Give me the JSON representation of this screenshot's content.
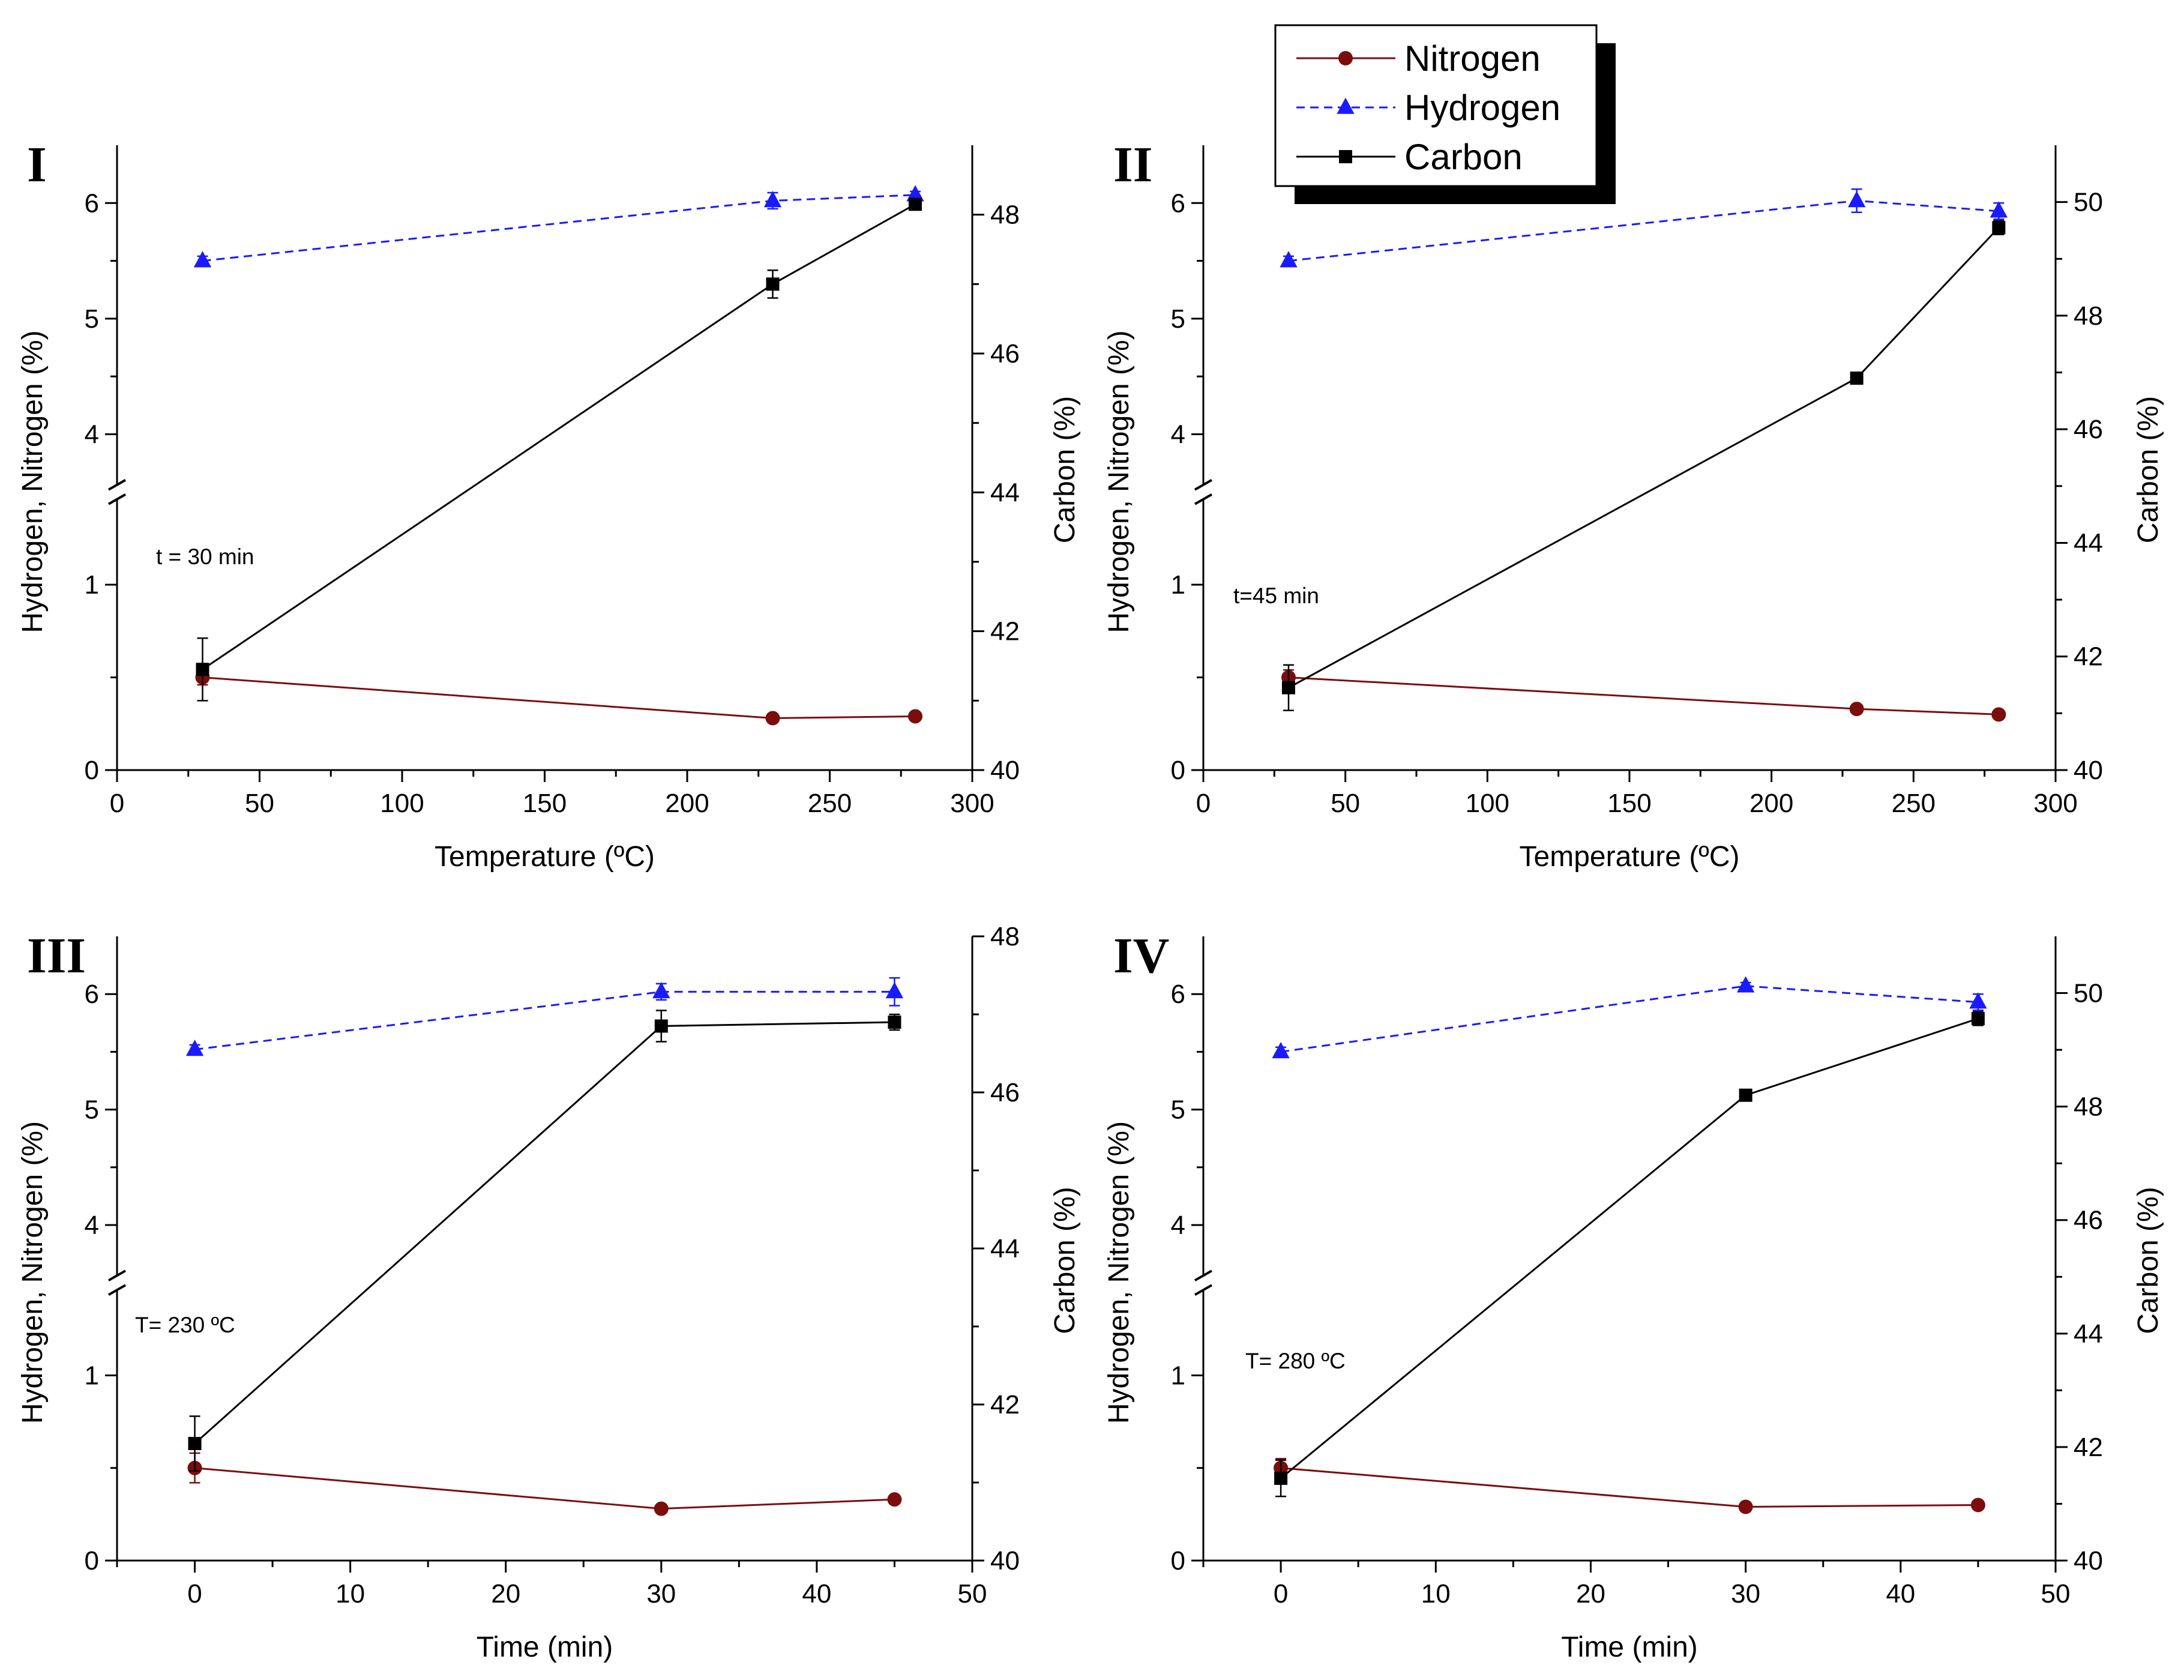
{
  "legend": {
    "placement": "top-center",
    "entries": [
      {
        "label": "Nitrogen",
        "color": "#7b0d0d",
        "dash": "solid",
        "marker": "circle"
      },
      {
        "label": "Hydrogen",
        "color": "#1a1aff",
        "dash": "dashed",
        "marker": "triangle"
      },
      {
        "label": "Carbon",
        "color": "#000000",
        "dash": "solid",
        "marker": "square"
      }
    ]
  },
  "chart_data": [
    {
      "panel": "I",
      "type": "line",
      "annotation": "t = 30 min",
      "xlabel": "Temperature (ºC)",
      "ylabel_left": "Hydrogen, Nitrogen (%)",
      "ylabel_right": "Carbon (%)",
      "xlim": [
        0,
        300
      ],
      "xticks": [
        0,
        50,
        100,
        150,
        200,
        250,
        300
      ],
      "left_axis_break": {
        "lower": [
          0,
          1.5
        ],
        "upper": [
          3.5,
          6.5
        ]
      },
      "yticks_left": [
        0,
        1,
        4,
        5,
        6
      ],
      "ylim_right": [
        40,
        49
      ],
      "yticks_right": [
        40,
        42,
        44,
        46,
        48
      ],
      "x": [
        30,
        230,
        280
      ],
      "series": [
        {
          "name": "Nitrogen",
          "axis": "left",
          "values": [
            0.5,
            0.28,
            0.29
          ],
          "errors": [
            0.04,
            0.01,
            0.01
          ]
        },
        {
          "name": "Hydrogen",
          "axis": "left",
          "values": [
            5.5,
            6.02,
            6.07
          ],
          "errors": [
            0.04,
            0.07,
            0.03
          ]
        },
        {
          "name": "Carbon",
          "axis": "right",
          "values": [
            41.45,
            47.0,
            48.15
          ],
          "errors": [
            0.45,
            0.2,
            0.05
          ]
        }
      ]
    },
    {
      "panel": "II",
      "type": "line",
      "annotation": "t=45 min",
      "xlabel": "Temperature (ºC)",
      "ylabel_left": "Hydrogen, Nitrogen (%)",
      "ylabel_right": "Carbon (%)",
      "xlim": [
        0,
        300
      ],
      "xticks": [
        0,
        50,
        100,
        150,
        200,
        250,
        300
      ],
      "left_axis_break": {
        "lower": [
          0,
          1.5
        ],
        "upper": [
          3.5,
          6.5
        ]
      },
      "yticks_left": [
        0,
        1,
        4,
        5,
        6
      ],
      "ylim_right": [
        40,
        51
      ],
      "yticks_right": [
        40,
        42,
        44,
        46,
        48,
        50
      ],
      "x": [
        30,
        230,
        280
      ],
      "series": [
        {
          "name": "Nitrogen",
          "axis": "left",
          "values": [
            0.5,
            0.33,
            0.3
          ],
          "errors": [
            0.04,
            0.01,
            0.01
          ]
        },
        {
          "name": "Hydrogen",
          "axis": "left",
          "values": [
            5.5,
            6.02,
            5.93
          ],
          "errors": [
            0.04,
            0.1,
            0.07
          ]
        },
        {
          "name": "Carbon",
          "axis": "right",
          "values": [
            41.45,
            46.9,
            49.55
          ],
          "errors": [
            0.4,
            0.05,
            0.12
          ]
        }
      ]
    },
    {
      "panel": "III",
      "type": "line",
      "annotation": "T= 230 ºC",
      "xlabel": "Time (min)",
      "ylabel_left": "Hydrogen, Nitrogen (%)",
      "ylabel_right": "Carbon (%)",
      "xlim": [
        -5,
        50
      ],
      "xticks": [
        0,
        10,
        20,
        30,
        40,
        50
      ],
      "left_axis_break": {
        "lower": [
          0,
          1.5
        ],
        "upper": [
          3.5,
          6.5
        ]
      },
      "yticks_left": [
        0,
        1,
        4,
        5,
        6
      ],
      "ylim_right": [
        40,
        48
      ],
      "yticks_right": [
        40,
        42,
        44,
        46,
        48
      ],
      "x": [
        0,
        30,
        45
      ],
      "series": [
        {
          "name": "Nitrogen",
          "axis": "left",
          "values": [
            0.5,
            0.28,
            0.33
          ],
          "errors": [
            0.08,
            0.01,
            0.01
          ]
        },
        {
          "name": "Hydrogen",
          "axis": "left",
          "values": [
            5.52,
            6.02,
            6.02
          ],
          "errors": [
            0.04,
            0.07,
            0.12
          ]
        },
        {
          "name": "Carbon",
          "axis": "right",
          "values": [
            41.5,
            46.85,
            46.9
          ],
          "errors": [
            0.35,
            0.2,
            0.1
          ]
        }
      ]
    },
    {
      "panel": "IV",
      "type": "line",
      "annotation": "T= 280 ºC",
      "xlabel": "Time (min)",
      "ylabel_left": "Hydrogen, Nitrogen (%)",
      "ylabel_right": "Carbon (%)",
      "xlim": [
        -5,
        50
      ],
      "xticks": [
        0,
        10,
        20,
        30,
        40,
        50
      ],
      "left_axis_break": {
        "lower": [
          0,
          1.5
        ],
        "upper": [
          3.5,
          6.5
        ]
      },
      "yticks_left": [
        0,
        1,
        4,
        5,
        6
      ],
      "ylim_right": [
        40,
        51
      ],
      "yticks_right": [
        40,
        42,
        44,
        46,
        48,
        50
      ],
      "x": [
        0,
        30,
        45
      ],
      "series": [
        {
          "name": "Nitrogen",
          "axis": "left",
          "values": [
            0.5,
            0.29,
            0.3
          ],
          "errors": [
            0.05,
            0.01,
            0.01
          ]
        },
        {
          "name": "Hydrogen",
          "axis": "left",
          "values": [
            5.5,
            6.07,
            5.93
          ],
          "errors": [
            0.04,
            0.03,
            0.07
          ]
        },
        {
          "name": "Carbon",
          "axis": "right",
          "values": [
            41.45,
            48.2,
            49.55
          ],
          "errors": [
            0.32,
            0.05,
            0.12
          ]
        }
      ]
    }
  ]
}
